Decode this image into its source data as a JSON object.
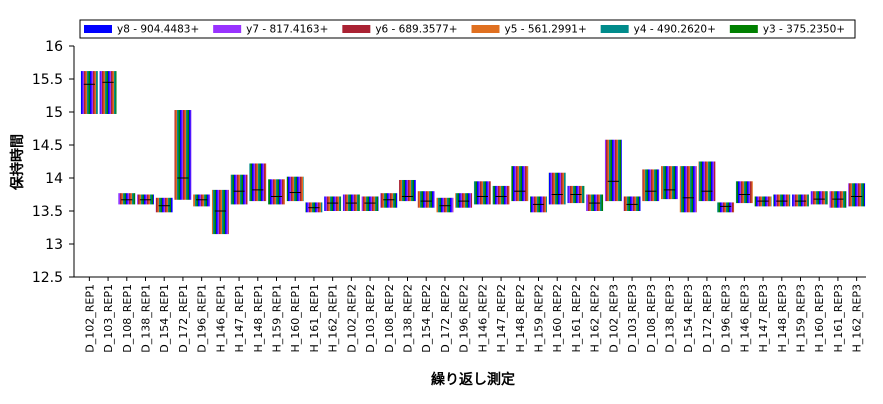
{
  "chart_data": {
    "type": "range",
    "x_label": "繰り返し測定",
    "y_label": "保持時間",
    "series": [
      {
        "name": "y8 - 904.4483+",
        "color": "#0000ff"
      },
      {
        "name": "y7 - 817.4163+",
        "color": "#9933ff"
      },
      {
        "name": "y6 - 689.3577+",
        "color": "#aa2233"
      },
      {
        "name": "y5 - 561.2991+",
        "color": "#e07020"
      },
      {
        "name": "y4 - 490.2620+",
        "color": "#008b8b"
      },
      {
        "name": "y3 - 375.2350+",
        "color": "#008000"
      }
    ],
    "categories": [
      "D_102_REP1",
      "D_103_REP1",
      "D_108_REP1",
      "D_138_REP1",
      "D_154_REP1",
      "D_172_REP1",
      "D_196_REP1",
      "H_146_REP1",
      "H_147_REP1",
      "H_148_REP1",
      "H_159_REP1",
      "H_160_REP1",
      "H_161_REP1",
      "H_162_REP1",
      "D_102_REP2",
      "D_103_REP2",
      "D_108_REP2",
      "D_138_REP2",
      "D_154_REP2",
      "D_172_REP2",
      "D_196_REP2",
      "H_146_REP2",
      "H_147_REP2",
      "H_148_REP2",
      "H_159_REP2",
      "H_160_REP2",
      "H_161_REP2",
      "H_162_REP2",
      "D_102_REP3",
      "D_103_REP3",
      "D_108_REP3",
      "D_138_REP3",
      "D_154_REP3",
      "D_172_REP3",
      "D_196_REP3",
      "H_146_REP3",
      "H_147_REP3",
      "H_148_REP3",
      "H_159_REP3",
      "H_160_REP3",
      "H_161_REP3",
      "H_162_REP3"
    ],
    "high": [
      15.62,
      15.62,
      13.77,
      13.75,
      13.7,
      15.03,
      13.75,
      13.82,
      14.05,
      14.22,
      13.98,
      14.02,
      13.63,
      13.72,
      13.75,
      13.72,
      13.77,
      13.97,
      13.8,
      13.7,
      13.77,
      13.95,
      13.88,
      14.18,
      13.72,
      14.08,
      13.88,
      13.75,
      14.58,
      13.72,
      14.13,
      14.18,
      14.18,
      14.25,
      13.63,
      13.95,
      13.72,
      13.75,
      13.75,
      13.8,
      13.8,
      13.92
    ],
    "low": [
      14.97,
      14.97,
      13.6,
      13.6,
      13.48,
      13.67,
      13.57,
      13.15,
      13.6,
      13.65,
      13.6,
      13.65,
      13.48,
      13.5,
      13.5,
      13.5,
      13.55,
      13.65,
      13.55,
      13.48,
      13.55,
      13.6,
      13.6,
      13.65,
      13.48,
      13.6,
      13.62,
      13.5,
      13.65,
      13.5,
      13.65,
      13.68,
      13.48,
      13.65,
      13.48,
      13.62,
      13.57,
      13.57,
      13.57,
      13.6,
      13.55,
      13.57
    ],
    "median": [
      15.42,
      15.45,
      13.67,
      13.67,
      13.58,
      14.0,
      13.67,
      13.5,
      13.8,
      13.82,
      13.72,
      13.78,
      13.55,
      13.62,
      13.62,
      13.62,
      13.67,
      13.72,
      13.65,
      13.58,
      13.65,
      13.72,
      13.72,
      13.8,
      13.6,
      13.75,
      13.75,
      13.62,
      13.95,
      13.6,
      13.8,
      13.82,
      13.7,
      13.8,
      13.57,
      13.75,
      13.65,
      13.65,
      13.65,
      13.68,
      13.68,
      13.72
    ],
    "ylim": [
      12.5,
      16
    ],
    "yticks": [
      12.5,
      13,
      13.5,
      14,
      14.5,
      15,
      15.5,
      16
    ],
    "grid": false
  }
}
